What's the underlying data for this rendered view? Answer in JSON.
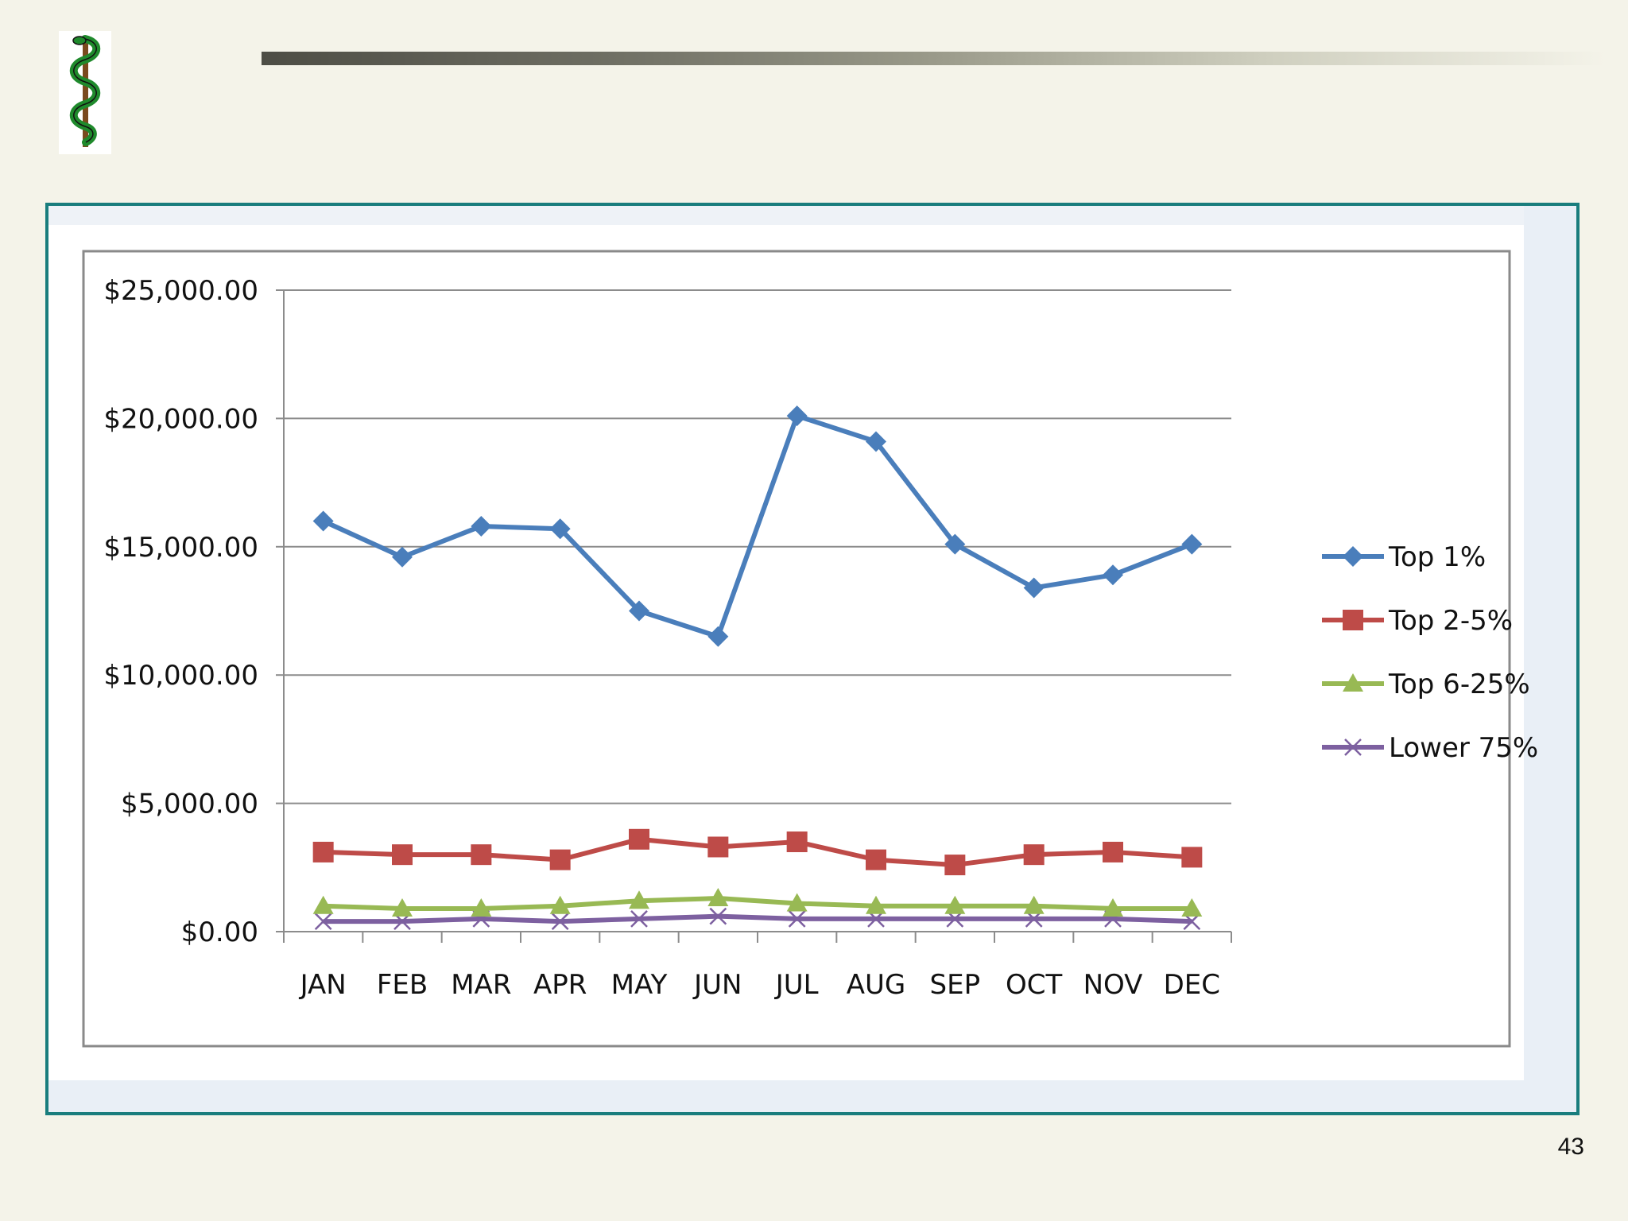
{
  "slide": {
    "page_number": "43",
    "logo_icon": "rod-of-asclepius-icon"
  },
  "colors": {
    "background": "#f4f3e9",
    "frame_border": "#197d7d",
    "top_1": "#4a7ebb",
    "top_2_5": "#be4b48",
    "top_6_25": "#98b954",
    "lower_75": "#7d60a0"
  },
  "chart_data": {
    "type": "line",
    "title": "",
    "xlabel": "",
    "ylabel": "",
    "categories": [
      "JAN",
      "FEB",
      "MAR",
      "APR",
      "MAY",
      "JUN",
      "JUL",
      "AUG",
      "SEP",
      "OCT",
      "NOV",
      "DEC"
    ],
    "y_ticks": [
      "$0.00",
      "$5,000.00",
      "$10,000.00",
      "$15,000.00",
      "$20,000.00",
      "$25,000.00"
    ],
    "ylim": [
      0,
      25000
    ],
    "grid": true,
    "legend_position": "right",
    "series": [
      {
        "name": "Top 1%",
        "marker": "diamond",
        "color": "#4a7ebb",
        "values": [
          16000,
          14600,
          15800,
          15700,
          12500,
          11500,
          20100,
          19100,
          15100,
          13400,
          13900,
          15100
        ]
      },
      {
        "name": "Top 2-5%",
        "marker": "square",
        "color": "#be4b48",
        "values": [
          3100,
          3000,
          3000,
          2800,
          3600,
          3300,
          3500,
          2800,
          2600,
          3000,
          3100,
          2900
        ]
      },
      {
        "name": "Top 6-25%",
        "marker": "triangle",
        "color": "#98b954",
        "values": [
          1000,
          900,
          900,
          1000,
          1200,
          1300,
          1100,
          1000,
          1000,
          1000,
          900,
          900
        ]
      },
      {
        "name": "Lower 75%",
        "marker": "x",
        "color": "#7d60a0",
        "values": [
          400,
          400,
          500,
          400,
          500,
          600,
          500,
          500,
          500,
          500,
          500,
          400
        ]
      }
    ]
  }
}
